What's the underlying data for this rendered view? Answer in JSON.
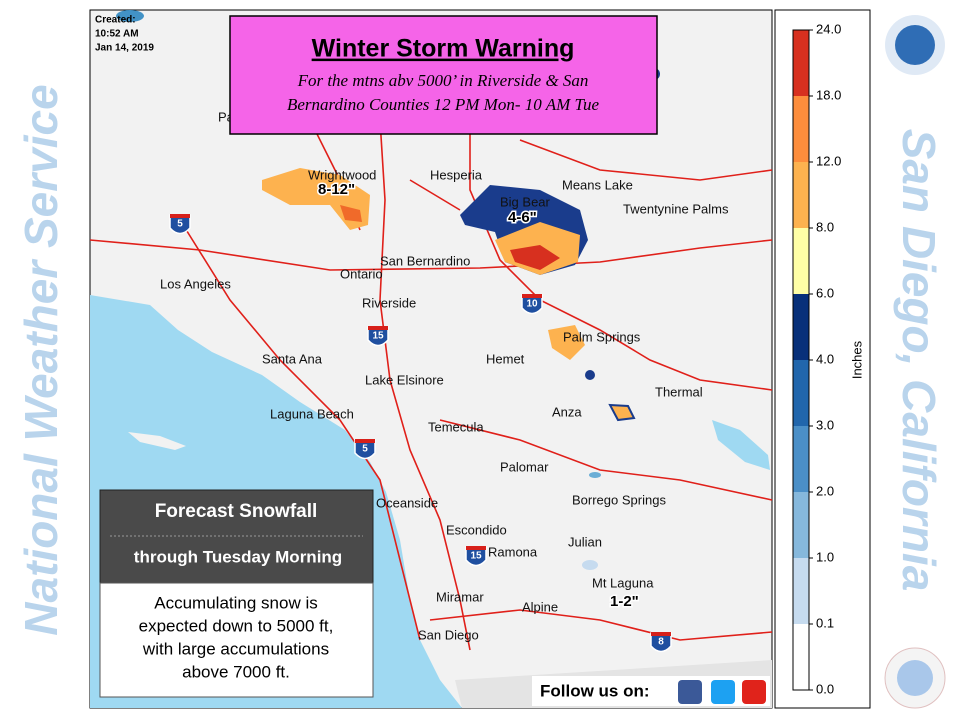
{
  "created": {
    "label": "Created:",
    "time": "10:52 AM",
    "date": "Jan 14, 2019"
  },
  "warning": {
    "title": "Winter Storm Warning",
    "lines": [
      "For the mtns abv 5000’ in Riverside & San",
      "Bernardino Counties 12 PM Mon- 10 AM Tue"
    ]
  },
  "side_left": "National Weather Service",
  "side_right": "San Diego, California",
  "legend": {
    "unit": "Inches",
    "labels": [
      "24.0",
      "18.0",
      "12.0",
      "8.0",
      "6.0",
      "4.0",
      "3.0",
      "2.0",
      "1.0",
      "0.1",
      "0.0"
    ]
  },
  "places": [
    "Pa",
    "Wrightwood",
    "Hesperia",
    "Means Lake",
    "Big Bear",
    "Twentynine Palms",
    "Ontario",
    "San Bernardino",
    "Los Angeles",
    "Riverside",
    "Palm Springs",
    "Santa Ana",
    "Hemet",
    "Lake Elsinore",
    "Thermal",
    "Laguna Beach",
    "Anza",
    "Temecula",
    "Palomar",
    "Oceanside",
    "Borrego Springs",
    "Escondido",
    "Julian",
    "Ramona",
    "Mt Laguna",
    "Miramar",
    "Alpine",
    "San Diego"
  ],
  "amounts": [
    "8-12\"",
    "4-6\"",
    "1-2\""
  ],
  "highways": [
    "5",
    "15",
    "10",
    "5",
    "15",
    "8"
  ],
  "info": {
    "title": "Forecast Snowfall",
    "subtitle": "through Tuesday Morning",
    "body": [
      "Accumulating snow is",
      "expected down to 5000 ft,",
      "with large accumulations",
      "above 7000 ft."
    ]
  },
  "footer": "Follow us on:"
}
